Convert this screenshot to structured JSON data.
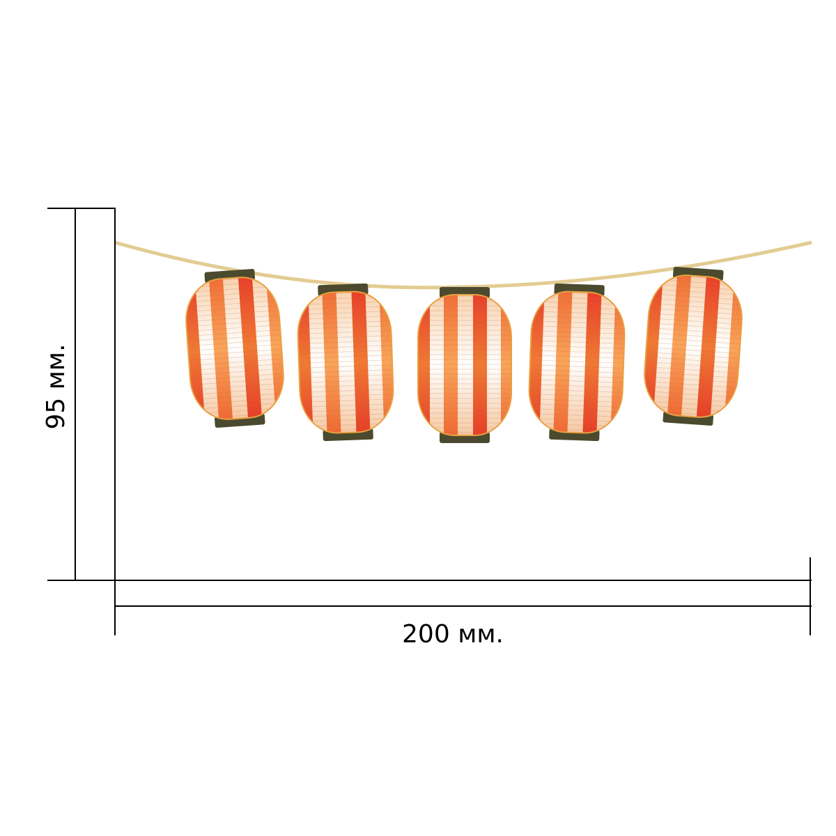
{
  "dimensions": {
    "height": "95 мм.",
    "width": "200 мм."
  }
}
